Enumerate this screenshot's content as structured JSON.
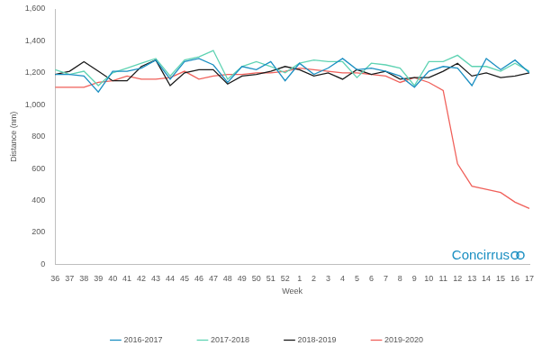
{
  "chart_data": {
    "type": "line",
    "x_label": "Week",
    "y_label": "Distance (nm)",
    "categories": [
      "36",
      "37",
      "38",
      "39",
      "40",
      "41",
      "42",
      "43",
      "44",
      "45",
      "46",
      "47",
      "48",
      "49",
      "50",
      "51",
      "52",
      "1",
      "2",
      "3",
      "4",
      "5",
      "6",
      "7",
      "8",
      "9",
      "10",
      "11",
      "12",
      "13",
      "14",
      "15",
      "16",
      "17"
    ],
    "series": [
      {
        "name": "2016-2017",
        "color": "#1b8fc2",
        "values": [
          1190,
          1190,
          1180,
          1080,
          1210,
          1210,
          1230,
          1280,
          1160,
          1270,
          1290,
          1250,
          1140,
          1240,
          1220,
          1270,
          1150,
          1260,
          1190,
          1230,
          1290,
          1220,
          1230,
          1210,
          1180,
          1110,
          1210,
          1240,
          1230,
          1120,
          1290,
          1220,
          1280,
          1200
        ]
      },
      {
        "name": "2017-2018",
        "color": "#5fd3b3",
        "values": [
          1220,
          1190,
          1210,
          1120,
          1200,
          1230,
          1260,
          1290,
          1180,
          1280,
          1300,
          1340,
          1160,
          1240,
          1270,
          1240,
          1200,
          1260,
          1280,
          1270,
          1270,
          1170,
          1260,
          1250,
          1230,
          1120,
          1270,
          1270,
          1310,
          1240,
          1240,
          1210,
          1260,
          1210
        ]
      },
      {
        "name": "2018-2019",
        "color": "#1a1a1a",
        "values": [
          1190,
          1210,
          1270,
          1210,
          1150,
          1150,
          1240,
          1280,
          1120,
          1200,
          1220,
          1220,
          1130,
          1180,
          1190,
          1210,
          1240,
          1220,
          1180,
          1200,
          1160,
          1220,
          1190,
          1210,
          1160,
          1170,
          1170,
          1210,
          1260,
          1180,
          1200,
          1170,
          1180,
          1200
        ]
      },
      {
        "name": "2019-2020",
        "color": "#f0605a",
        "values": [
          1110,
          1110,
          1110,
          1140,
          1150,
          1180,
          1160,
          1160,
          1170,
          1210,
          1160,
          1180,
          1190,
          1190,
          1200,
          1200,
          1210,
          1230,
          1220,
          1210,
          1200,
          1200,
          1190,
          1180,
          1140,
          1170,
          1140,
          1090,
          630,
          490,
          470,
          450,
          390,
          350
        ]
      }
    ],
    "ylim": [
      0,
      1600
    ],
    "yticks": [
      0,
      200,
      400,
      600,
      800,
      {
        "value": 1000,
        "label": "1,000"
      },
      {
        "value": 1200,
        "label": "1,200"
      },
      {
        "value": 1400,
        "label": "1,400"
      },
      {
        "value": 1600,
        "label": "1,600"
      }
    ],
    "grid": false,
    "legend": "bottom",
    "annotations": [
      "Concirrus"
    ]
  }
}
